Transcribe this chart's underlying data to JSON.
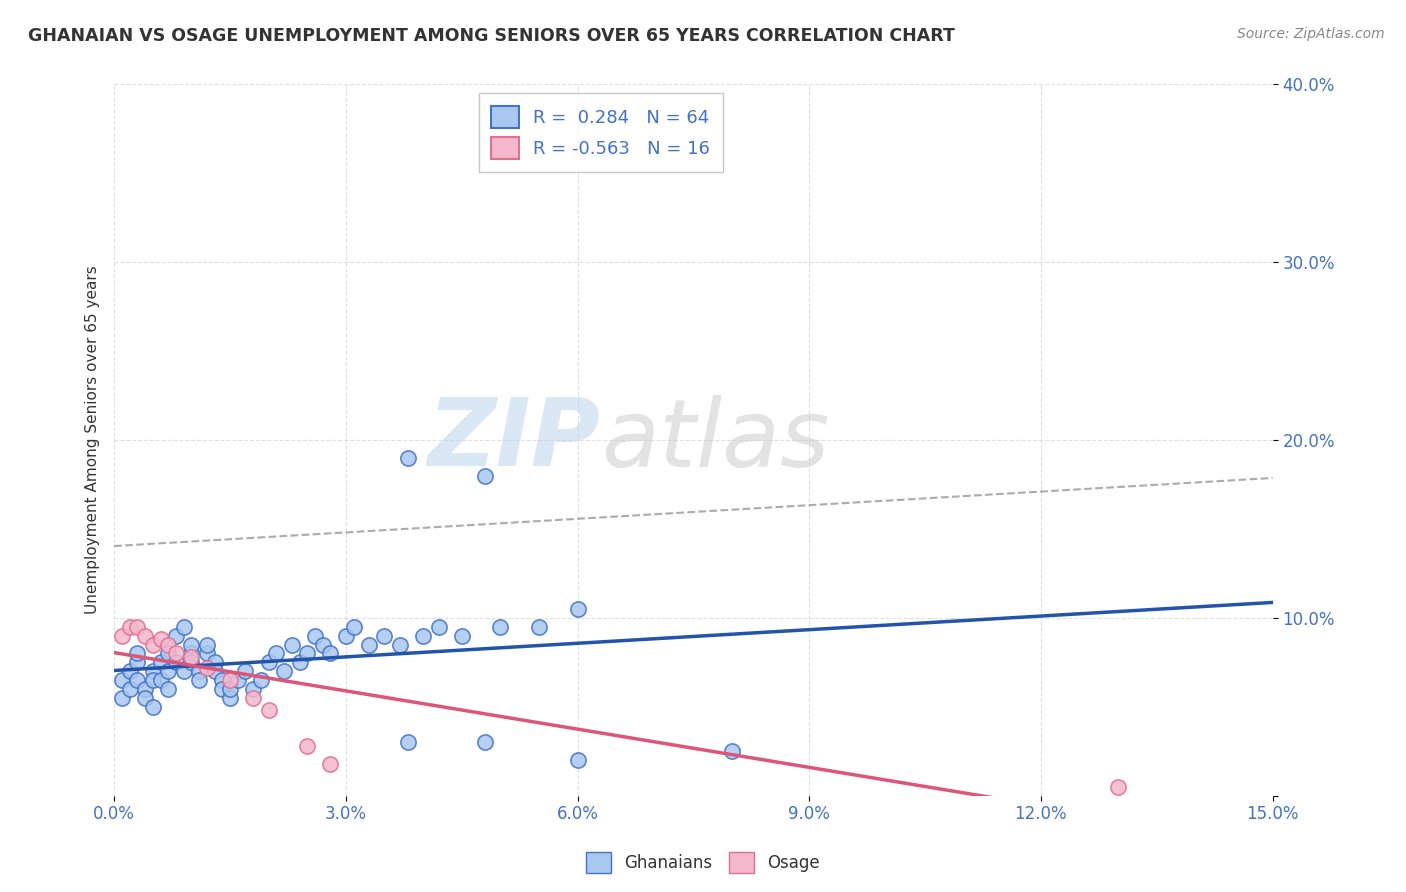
{
  "title": "GHANAIAN VS OSAGE UNEMPLOYMENT AMONG SENIORS OVER 65 YEARS CORRELATION CHART",
  "source": "Source: ZipAtlas.com",
  "ylabel": "Unemployment Among Seniors over 65 years",
  "xlim": [
    0.0,
    0.15
  ],
  "ylim": [
    0.0,
    0.4
  ],
  "legend_labels": [
    "Ghanaians",
    "Osage"
  ],
  "blue_fill_color": "#A8C8F0",
  "pink_fill_color": "#F4B8CC",
  "blue_edge_color": "#4472C4",
  "pink_edge_color": "#E07090",
  "blue_line_color": "#2255AA",
  "pink_line_color": "#DD5577",
  "ghanaian_R": 0.284,
  "ghanaian_N": 64,
  "osage_R": -0.563,
  "osage_N": 16,
  "ghanaians_x": [
    0.001,
    0.001,
    0.002,
    0.002,
    0.003,
    0.003,
    0.003,
    0.004,
    0.004,
    0.005,
    0.005,
    0.005,
    0.006,
    0.006,
    0.007,
    0.007,
    0.007,
    0.008,
    0.008,
    0.009,
    0.009,
    0.01,
    0.01,
    0.01,
    0.011,
    0.011,
    0.012,
    0.012,
    0.013,
    0.013,
    0.014,
    0.014,
    0.015,
    0.015,
    0.016,
    0.017,
    0.018,
    0.019,
    0.02,
    0.021,
    0.022,
    0.023,
    0.024,
    0.025,
    0.026,
    0.027,
    0.028,
    0.03,
    0.031,
    0.033,
    0.035,
    0.037,
    0.04,
    0.042,
    0.045,
    0.05,
    0.055,
    0.06,
    0.038,
    0.048,
    0.038,
    0.048,
    0.06,
    0.08
  ],
  "ghanaians_y": [
    0.055,
    0.065,
    0.06,
    0.07,
    0.075,
    0.08,
    0.065,
    0.06,
    0.055,
    0.07,
    0.065,
    0.05,
    0.075,
    0.065,
    0.08,
    0.07,
    0.06,
    0.09,
    0.075,
    0.095,
    0.07,
    0.08,
    0.075,
    0.085,
    0.07,
    0.065,
    0.08,
    0.085,
    0.075,
    0.07,
    0.065,
    0.06,
    0.055,
    0.06,
    0.065,
    0.07,
    0.06,
    0.065,
    0.075,
    0.08,
    0.07,
    0.085,
    0.075,
    0.08,
    0.09,
    0.085,
    0.08,
    0.09,
    0.095,
    0.085,
    0.09,
    0.085,
    0.09,
    0.095,
    0.09,
    0.095,
    0.095,
    0.105,
    0.03,
    0.03,
    0.19,
    0.18,
    0.02,
    0.025
  ],
  "osage_x": [
    0.001,
    0.002,
    0.003,
    0.004,
    0.005,
    0.006,
    0.007,
    0.008,
    0.01,
    0.012,
    0.015,
    0.018,
    0.02,
    0.025,
    0.028,
    0.13
  ],
  "osage_y": [
    0.09,
    0.095,
    0.095,
    0.09,
    0.085,
    0.088,
    0.085,
    0.08,
    0.078,
    0.072,
    0.065,
    0.055,
    0.048,
    0.028,
    0.018,
    0.005
  ],
  "watermark_zip": "ZIP",
  "watermark_atlas": "atlas",
  "background_color": "#FFFFFF",
  "grid_color": "#DDDDDD"
}
